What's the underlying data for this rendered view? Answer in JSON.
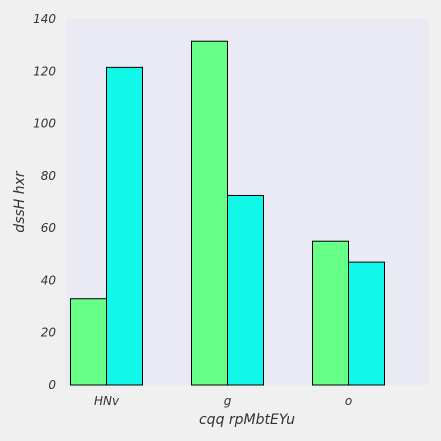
{
  "chart_data": {
    "type": "bar",
    "categories": [
      "HNv",
      "g",
      "o"
    ],
    "series": [
      {
        "values": [
          33,
          131.5,
          55
        ],
        "color": "#66ff88"
      },
      {
        "values": [
          121.5,
          72.5,
          47
        ],
        "color": "#11f7e8"
      }
    ],
    "xlabel": "cqq rpMbtEYu",
    "ylabel": "dssH hxr",
    "ylim": [
      0,
      140
    ],
    "yticks": [
      0,
      20,
      40,
      60,
      80,
      100,
      120,
      140
    ],
    "grid": false,
    "plot_background": "#e9eaf3",
    "page_background": "#f0f0f0",
    "bar_edge_color": "#000000"
  }
}
